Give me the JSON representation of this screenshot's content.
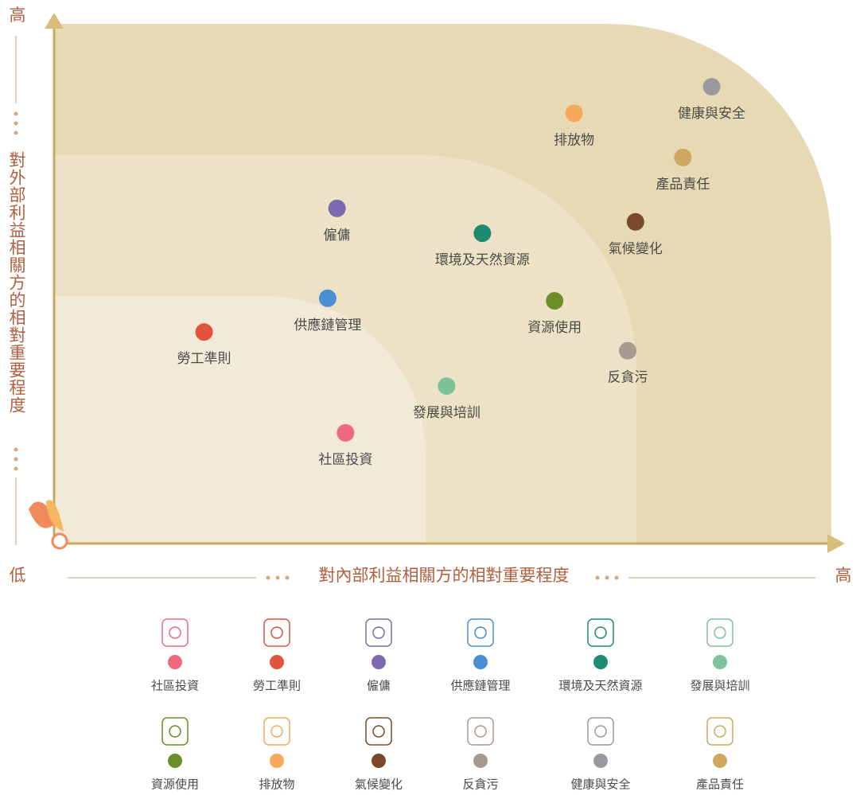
{
  "chart_data": {
    "type": "scatter",
    "y_label": "對外部利益相關方的相對重要程度",
    "x_label": "對內部利益相關方的相對重要程度",
    "origin_label": "低",
    "y_high_label": "高",
    "x_high_label": "高",
    "xlim": [
      0,
      100
    ],
    "ylim": [
      0,
      100
    ],
    "series": [
      {
        "name": "社區投資",
        "color": "#ee6a7e",
        "x": 37.5,
        "y": 21.3
      },
      {
        "name": "勞工準則",
        "color": "#e2523f",
        "x": 19.3,
        "y": 40.7
      },
      {
        "name": "僱傭",
        "color": "#7a6bb0",
        "x": 36.4,
        "y": 64.5
      },
      {
        "name": "供應鏈管理",
        "color": "#4a8fd6",
        "x": 35.2,
        "y": 47.2
      },
      {
        "name": "環境及天然資源",
        "color": "#1e8a72",
        "x": 55.1,
        "y": 59.7
      },
      {
        "name": "發展與培訓",
        "color": "#7dc29a",
        "x": 50.5,
        "y": 30.3
      },
      {
        "name": "資源使用",
        "color": "#6a8f2a",
        "x": 64.4,
        "y": 46.7
      },
      {
        "name": "排放物",
        "color": "#f7a85a",
        "x": 66.9,
        "y": 82.8
      },
      {
        "name": "氣候變化",
        "color": "#7a4a2a",
        "x": 74.8,
        "y": 61.9
      },
      {
        "name": "反貪污",
        "color": "#a89a8e",
        "x": 73.8,
        "y": 37.1
      },
      {
        "name": "健康與安全",
        "color": "#9a9a9e",
        "x": 84.6,
        "y": 87.9
      },
      {
        "name": "產品責任",
        "color": "#cfa860",
        "x": 80.9,
        "y": 74.3
      }
    ]
  }
}
